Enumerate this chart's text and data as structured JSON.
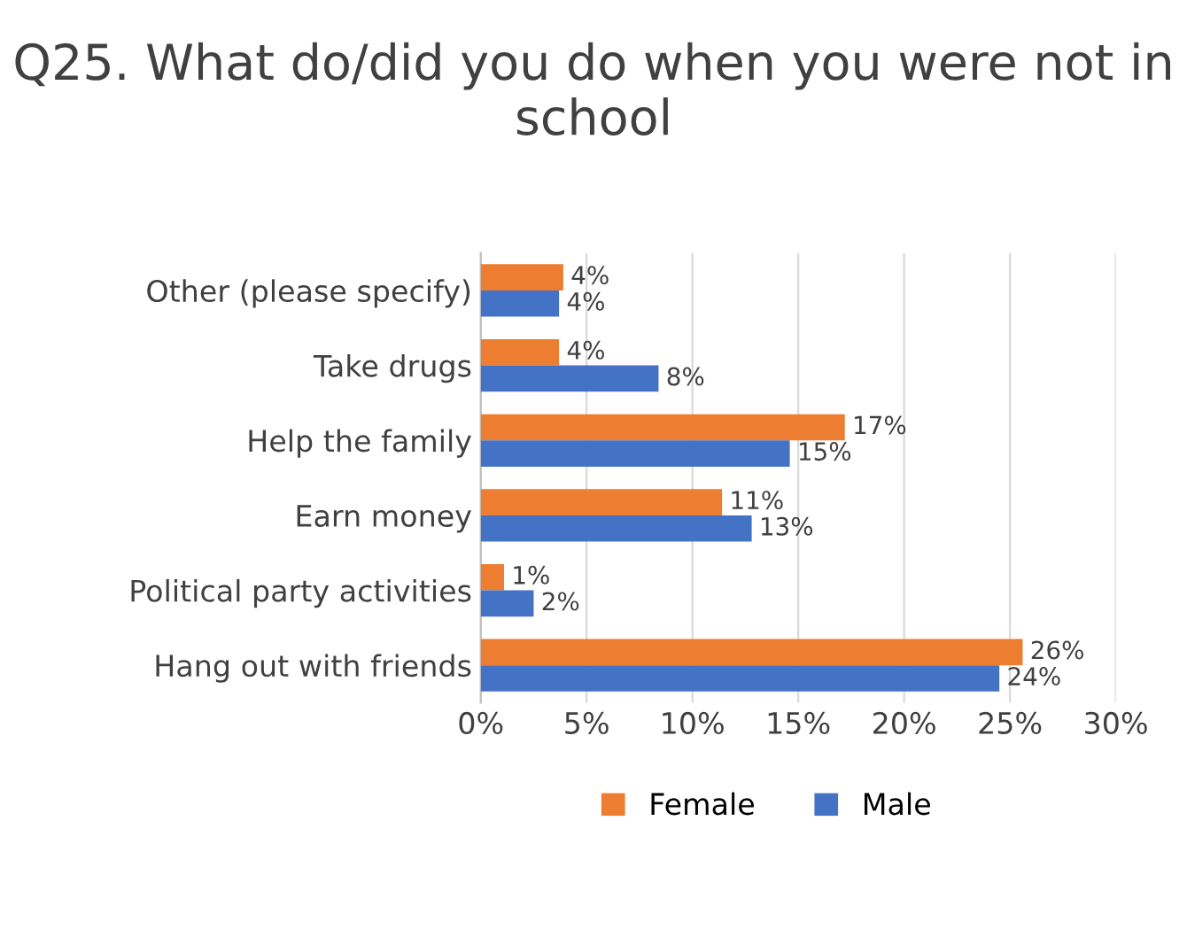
{
  "chart_data": {
    "type": "bar",
    "orientation": "horizontal",
    "title": "Q25. What do/did you do when you were not in school",
    "categories": [
      "Other (please specify)",
      "Take drugs",
      "Help the family",
      "Earn money",
      "Political party activities",
      "Hang out with friends"
    ],
    "series": [
      {
        "name": "Female",
        "color": "#ed7d31",
        "values": [
          3.9,
          3.7,
          17.2,
          11.4,
          1.1,
          25.6
        ],
        "value_labels": [
          "4%",
          "4%",
          "17%",
          "11%",
          "1%",
          "26%"
        ]
      },
      {
        "name": "Male",
        "color": "#4472c4",
        "values": [
          3.7,
          8.4,
          14.6,
          12.8,
          2.5,
          24.5
        ],
        "value_labels": [
          "4%",
          "8%",
          "15%",
          "13%",
          "2%",
          "24%"
        ]
      }
    ],
    "xlim": [
      0,
      30
    ],
    "xticks": [
      {
        "value": 0,
        "label": "0%"
      },
      {
        "value": 5,
        "label": "5%"
      },
      {
        "value": 10,
        "label": "10%"
      },
      {
        "value": 15,
        "label": "15%"
      },
      {
        "value": 20,
        "label": "20%"
      },
      {
        "value": 25,
        "label": "25%"
      },
      {
        "value": 30,
        "label": "30%"
      }
    ],
    "grid": "x",
    "legend": "bottom"
  }
}
